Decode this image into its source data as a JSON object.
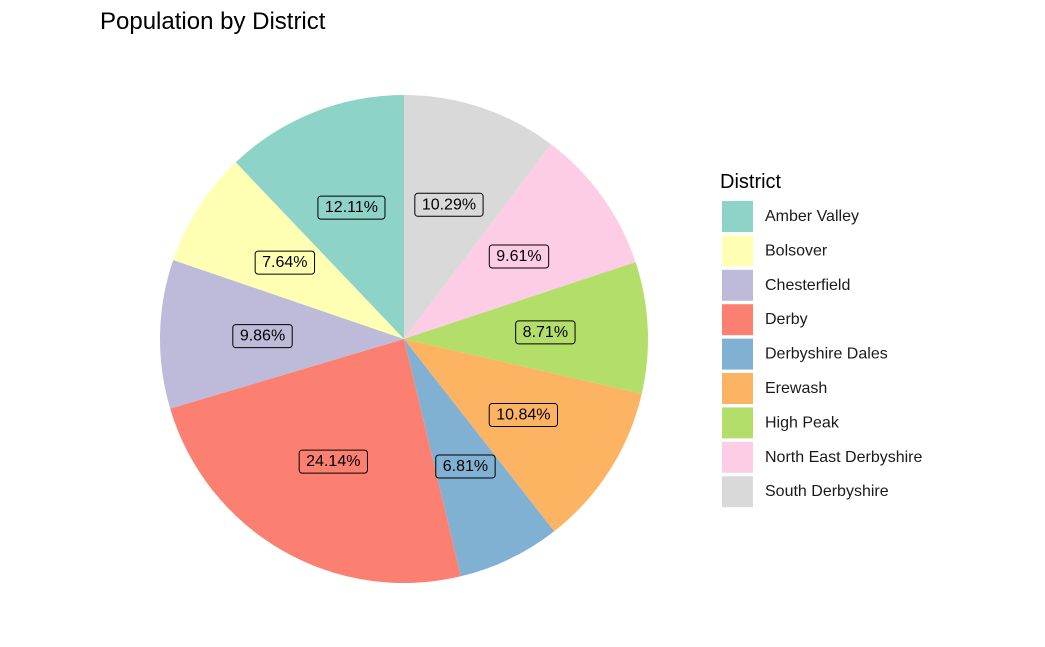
{
  "chart_data": {
    "type": "pie",
    "title": "Population by District",
    "legend_title": "District",
    "legend_position": "right",
    "start": "12 o'clock",
    "direction": "clockwise",
    "slices_in_drawing_order": [
      "South Derbyshire",
      "North East Derbyshire",
      "High Peak",
      "Erewash",
      "Derbyshire Dales",
      "Derby",
      "Chesterfield",
      "Bolsover",
      "Amber Valley"
    ],
    "categories": [
      "Amber Valley",
      "Bolsover",
      "Chesterfield",
      "Derby",
      "Derbyshire Dales",
      "Erewash",
      "High Peak",
      "North East Derbyshire",
      "South Derbyshire"
    ],
    "values": [
      12.11,
      7.64,
      9.86,
      24.14,
      6.81,
      10.84,
      8.71,
      9.61,
      10.29
    ],
    "labels": [
      "12.11%",
      "7.64%",
      "9.86%",
      "24.14%",
      "6.81%",
      "10.84%",
      "8.71%",
      "9.61%",
      "10.29%"
    ],
    "colors": [
      "#8DD3C7",
      "#FFFFB3",
      "#BEBADA",
      "#FB8072",
      "#80B1D3",
      "#FDB462",
      "#B3DE69",
      "#FCCDE5",
      "#D9D9D9"
    ]
  }
}
